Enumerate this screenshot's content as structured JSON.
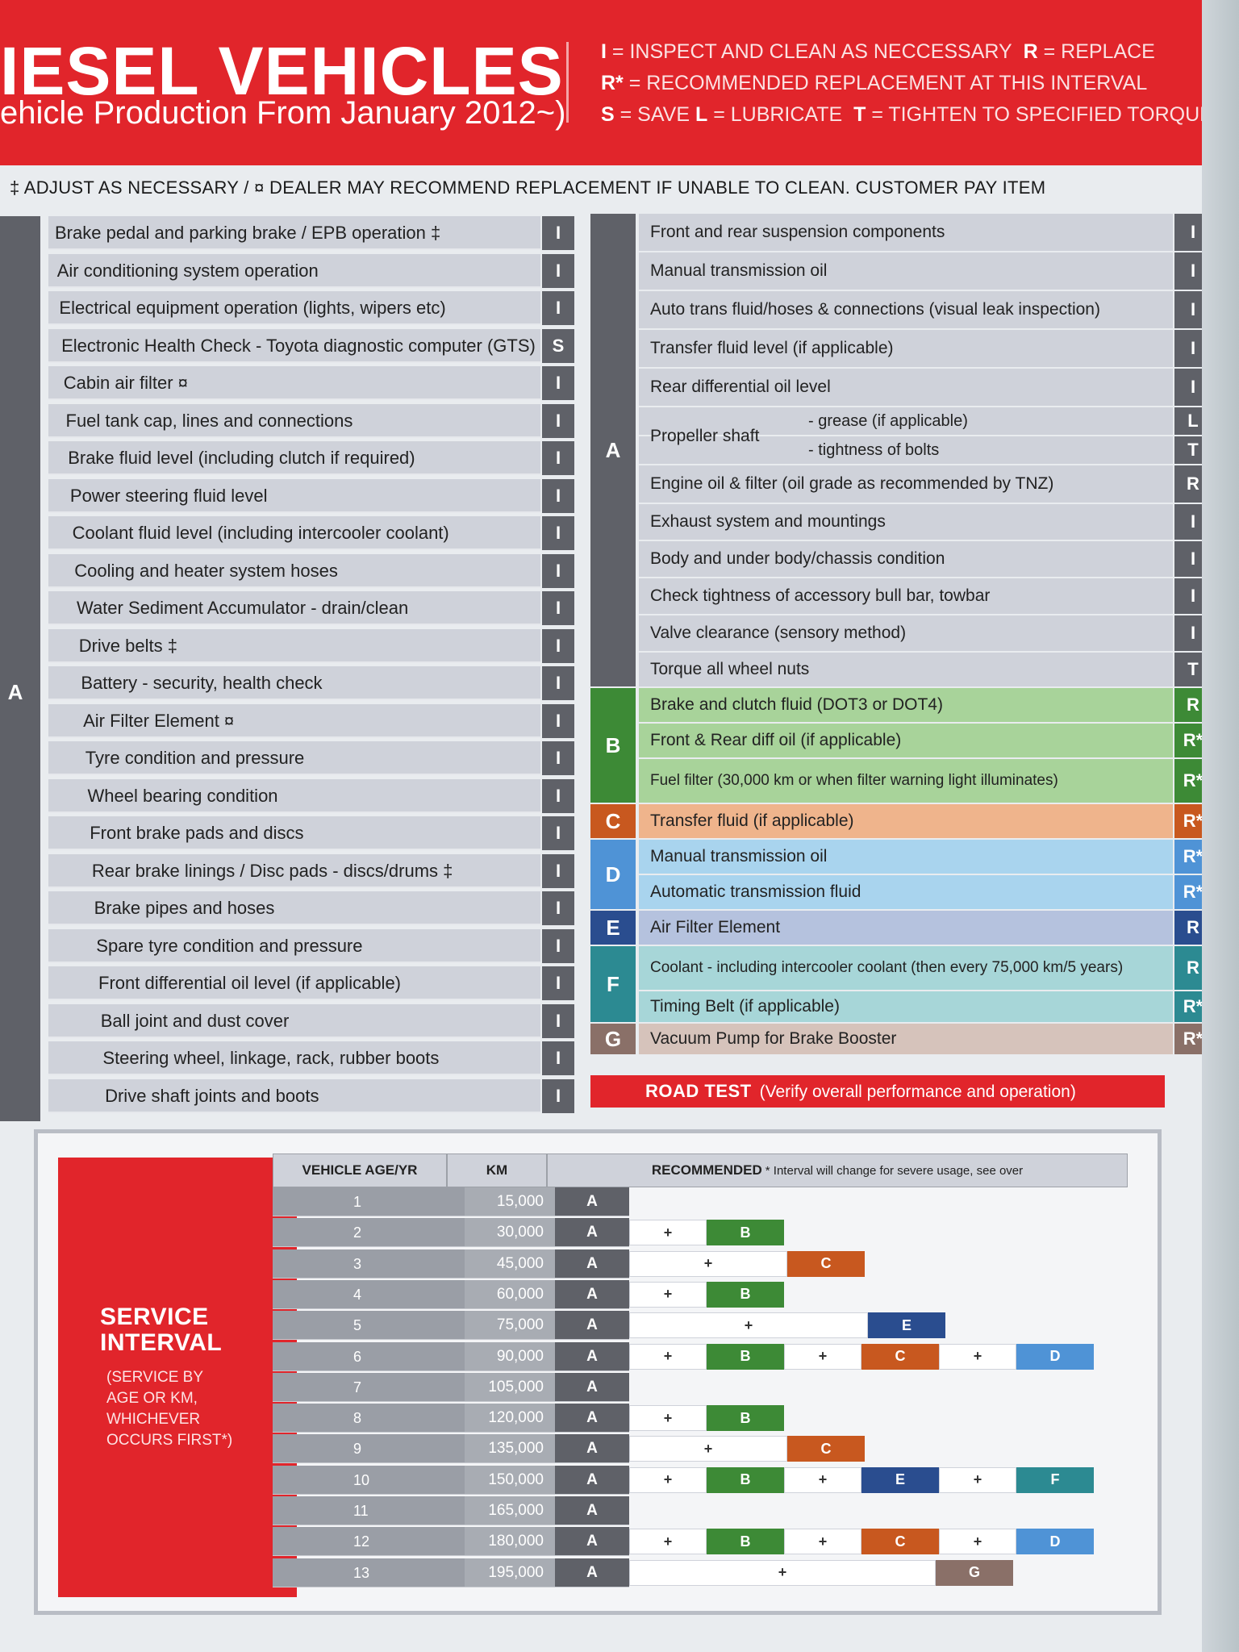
{
  "header": {
    "title": "IESEL VEHICLES",
    "subtitle": "ehicle Production From January 2012~)",
    "legend_line1_key": "I",
    "legend_line1_text": " = INSPECT AND CLEAN AS NECCESSARY",
    "legend_line1_key2": "R",
    "legend_line1_text2": " = REPLACE",
    "legend_line2_key": "R*",
    "legend_line2_text": " = RECOMMENDED REPLACEMENT AT THIS INTERVAL",
    "legend_line3_key": "S",
    "legend_line3_text": " = SAVE ",
    "legend_line3_key2": "L",
    "legend_line3_text2": " = LUBRICATE ",
    "legend_line3_key3": "T",
    "legend_line3_text3": " = TIGHTEN TO SPECIFIED TORQUE"
  },
  "note": "‡ ADJUST AS NECESSARY   /   ¤ DEALER MAY RECOMMEND REPLACEMENT IF UNABLE TO CLEAN.  CUSTOMER PAY ITEM",
  "left": {
    "group": "A",
    "items": [
      {
        "task": "Brake pedal and parking brake / EPB operation ‡",
        "code": "I"
      },
      {
        "task": "Air conditioning system operation",
        "code": "I"
      },
      {
        "task": "Electrical equipment operation (lights, wipers etc)",
        "code": "I"
      },
      {
        "task": "Electronic Health Check - Toyota diagnostic computer (GTS)",
        "code": "S"
      },
      {
        "task": "Cabin air filter ¤",
        "code": "I"
      },
      {
        "task": "Fuel tank cap, lines and connections",
        "code": "I"
      },
      {
        "task": "Brake fluid level (including clutch if required)",
        "code": "I"
      },
      {
        "task": "Power steering fluid level",
        "code": "I"
      },
      {
        "task": "Coolant fluid level (including intercooler coolant)",
        "code": "I"
      },
      {
        "task": "Cooling and heater system hoses",
        "code": "I"
      },
      {
        "task": "Water Sediment Accumulator  - drain/clean",
        "code": "I"
      },
      {
        "task": "Drive belts ‡",
        "code": "I"
      },
      {
        "task": "Battery - security, health check",
        "code": "I"
      },
      {
        "task": "Air Filter Element ¤",
        "code": "I"
      },
      {
        "task": "Tyre condition and pressure",
        "code": "I"
      },
      {
        "task": "Wheel bearing condition",
        "code": "I"
      },
      {
        "task": "Front brake pads and discs",
        "code": "I"
      },
      {
        "task": "Rear brake linings / Disc pads - discs/drums ‡",
        "code": "I"
      },
      {
        "task": "Brake pipes and hoses",
        "code": "I"
      },
      {
        "task": "Spare tyre condition and pressure",
        "code": "I"
      },
      {
        "task": "Front differential oil level (if applicable)",
        "code": "I"
      },
      {
        "task": "Ball joint and dust cover",
        "code": "I"
      },
      {
        "task": "Steering wheel, linkage, rack, rubber boots",
        "code": "I"
      },
      {
        "task": "Drive shaft joints and boots",
        "code": "I"
      }
    ]
  },
  "right": {
    "groups": [
      {
        "label": "A",
        "color": "#5f6168"
      },
      {
        "label": "B",
        "color": "#3d8a36"
      },
      {
        "label": "C",
        "color": "#c8581f"
      },
      {
        "label": "D",
        "color": "#4f93d6"
      },
      {
        "label": "E",
        "color": "#2a4d8f"
      },
      {
        "label": "F",
        "color": "#2c8a92"
      },
      {
        "label": "G",
        "color": "#8a7068"
      }
    ],
    "items": [
      {
        "task": "Front and rear suspension components",
        "code": "I",
        "group": 0
      },
      {
        "task": "Manual transmission oil",
        "code": "I",
        "group": 0
      },
      {
        "task": "Auto trans fluid/hoses & connections (visual leak inspection)",
        "code": "I",
        "group": 0
      },
      {
        "task": "Transfer fluid level (if applicable)",
        "code": "I",
        "group": 0
      },
      {
        "task": "Rear differential oil level",
        "code": "I",
        "group": 0
      },
      {
        "task": "",
        "code": "L",
        "group": 0
      },
      {
        "task": "",
        "code": "T",
        "group": 0
      },
      {
        "task": "Engine oil & filter (oil grade as recommended by TNZ)",
        "code": "R",
        "group": 0
      },
      {
        "task": "Exhaust system and mountings",
        "code": "I",
        "group": 0
      },
      {
        "task": "Body and under body/chassis condition",
        "code": "I",
        "group": 0
      },
      {
        "task": "Check tightness of accessory bull bar, towbar",
        "code": "I",
        "group": 0
      },
      {
        "task": "Valve clearance (sensory method)",
        "code": "I",
        "group": 0
      },
      {
        "task": "Torque all wheel nuts",
        "code": "T",
        "group": 0
      },
      {
        "task": "Brake and clutch fluid (DOT3 or DOT4)",
        "code": "R",
        "group": 1
      },
      {
        "task": "Front & Rear diff oil (if applicable)",
        "code": "R*",
        "group": 1
      },
      {
        "task": "Fuel filter (30,000 km or when filter warning light illuminates)",
        "code": "R*",
        "group": 1
      },
      {
        "task": "Transfer fluid (if applicable)",
        "code": "R*",
        "group": 2
      },
      {
        "task": "Manual transmission oil",
        "code": "R*",
        "group": 3
      },
      {
        "task": "Automatic transmission fluid",
        "code": "R*",
        "group": 3
      },
      {
        "task": "Air Filter Element",
        "code": "R",
        "group": 4
      },
      {
        "task": "Coolant - including intercooler coolant (then every 75,000 km/5 years)",
        "code": "R",
        "group": 5
      },
      {
        "task": "Timing Belt (if applicable)",
        "code": "R*",
        "group": 5
      },
      {
        "task": "Vacuum Pump for Brake Booster",
        "code": "R*",
        "group": 6
      }
    ],
    "propeller_shaft": "Propeller shaft",
    "grease": "- grease (if applicable)",
    "bolts": "- tightness of bolts",
    "road_test": "ROAD TEST",
    "road_test_note": "(Verify overall performance and operation)"
  },
  "interval": {
    "title_line1": "SERVICE",
    "title_line2": "INTERVAL",
    "note_line1": "(SERVICE BY",
    "note_line2": "AGE OR KM,",
    "note_line3": "WHICHEVER",
    "note_line4": "OCCURS FIRST*)",
    "col_age": "VEHICLE AGE/YR",
    "col_km": "KM",
    "col_rec": "RECOMMENDED",
    "col_rec_note": "* Interval will change for severe usage, see over",
    "rows": [
      {
        "age": "1",
        "km": "15,000",
        "a": "A",
        "extra": []
      },
      {
        "age": "2",
        "km": "30,000",
        "a": "A",
        "extra": [
          "+",
          "B"
        ]
      },
      {
        "age": "3",
        "km": "45,000",
        "a": "A",
        "extra": [
          "+",
          "C"
        ]
      },
      {
        "age": "4",
        "km": "60,000",
        "a": "A",
        "extra": [
          "+",
          "B"
        ]
      },
      {
        "age": "5",
        "km": "75,000",
        "a": "A",
        "extra": [
          "+",
          "E"
        ]
      },
      {
        "age": "6",
        "km": "90,000",
        "a": "A",
        "extra": [
          "+",
          "B",
          "+",
          "C",
          "+",
          "D"
        ]
      },
      {
        "age": "7",
        "km": "105,000",
        "a": "A",
        "extra": []
      },
      {
        "age": "8",
        "km": "120,000",
        "a": "A",
        "extra": [
          "+",
          "B"
        ]
      },
      {
        "age": "9",
        "km": "135,000",
        "a": "A",
        "extra": [
          "+",
          "C"
        ]
      },
      {
        "age": "10",
        "km": "150,000",
        "a": "A",
        "extra": [
          "+",
          "B",
          "+",
          "E",
          "+",
          "F"
        ]
      },
      {
        "age": "11",
        "km": "165,000",
        "a": "A",
        "extra": []
      },
      {
        "age": "12",
        "km": "180,000",
        "a": "A",
        "extra": [
          "+",
          "B",
          "+",
          "C",
          "+",
          "D"
        ]
      },
      {
        "age": "13",
        "km": "195,000",
        "a": "A",
        "extra": [
          "+",
          "G"
        ]
      }
    ]
  }
}
